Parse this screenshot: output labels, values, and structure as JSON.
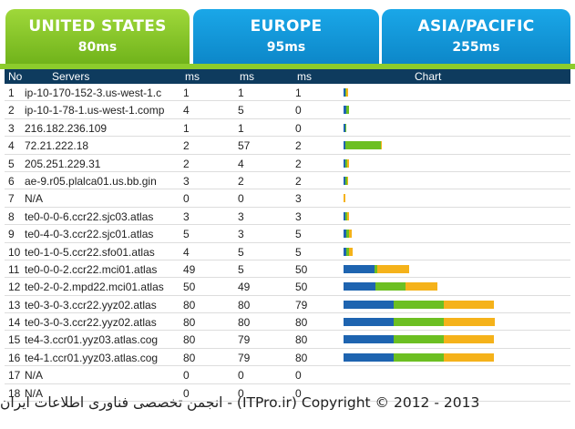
{
  "tabs": [
    {
      "name": "UNITED STATES",
      "ms": "80ms"
    },
    {
      "name": "EUROPE",
      "ms": "95ms"
    },
    {
      "name": "ASIA/PACIFIC",
      "ms": "255ms"
    }
  ],
  "table": {
    "headers": [
      "No",
      "Servers",
      "ms",
      "ms",
      "ms",
      "Chart"
    ],
    "rows": [
      {
        "no": "1",
        "server": "ip-10-170-152-3.us-west-1.c",
        "ms1": "1",
        "ms2": "1",
        "ms3": "1"
      },
      {
        "no": "2",
        "server": "ip-10-1-78-1.us-west-1.comp",
        "ms1": "4",
        "ms2": "5",
        "ms3": "0"
      },
      {
        "no": "3",
        "server": "216.182.236.109",
        "ms1": "1",
        "ms2": "1",
        "ms3": "0"
      },
      {
        "no": "4",
        "server": "72.21.222.18",
        "ms1": "2",
        "ms2": "57",
        "ms3": "2"
      },
      {
        "no": "5",
        "server": "205.251.229.31",
        "ms1": "2",
        "ms2": "4",
        "ms3": "2"
      },
      {
        "no": "6",
        "server": "ae-9.r05.plalca01.us.bb.gin",
        "ms1": "3",
        "ms2": "2",
        "ms3": "2"
      },
      {
        "no": "7",
        "server": "N/A",
        "ms1": "0",
        "ms2": "0",
        "ms3": "3"
      },
      {
        "no": "8",
        "server": "te0-0-0-6.ccr22.sjc03.atlas",
        "ms1": "3",
        "ms2": "3",
        "ms3": "3"
      },
      {
        "no": "9",
        "server": "te0-4-0-3.ccr22.sjc01.atlas",
        "ms1": "5",
        "ms2": "3",
        "ms3": "5"
      },
      {
        "no": "10",
        "server": "te0-1-0-5.ccr22.sfo01.atlas",
        "ms1": "4",
        "ms2": "5",
        "ms3": "5"
      },
      {
        "no": "11",
        "server": "te0-0-0-2.ccr22.mci01.atlas",
        "ms1": "49",
        "ms2": "5",
        "ms3": "50"
      },
      {
        "no": "12",
        "server": "te0-2-0-2.mpd22.mci01.atlas",
        "ms1": "50",
        "ms2": "49",
        "ms3": "50"
      },
      {
        "no": "13",
        "server": "te0-3-0-3.ccr22.yyz02.atlas",
        "ms1": "80",
        "ms2": "80",
        "ms3": "79"
      },
      {
        "no": "14",
        "server": "te0-3-0-3.ccr22.yyz02.atlas",
        "ms1": "80",
        "ms2": "80",
        "ms3": "80"
      },
      {
        "no": "15",
        "server": "te4-3.ccr01.yyz03.atlas.cog",
        "ms1": "80",
        "ms2": "79",
        "ms3": "80"
      },
      {
        "no": "16",
        "server": "te4-1.ccr01.yyz03.atlas.cog",
        "ms1": "80",
        "ms2": "79",
        "ms3": "80"
      },
      {
        "no": "17",
        "server": "N/A",
        "ms1": "0",
        "ms2": "0",
        "ms3": "0"
      },
      {
        "no": "18",
        "server": "N/A",
        "ms1": "0",
        "ms2": "0",
        "ms3": "0"
      }
    ]
  },
  "colors": {
    "series1": "#1e64b0",
    "series2": "#6cbf22",
    "series3": "#f5b21a",
    "header_bg": "#0e3b5e",
    "tab_green": "#7dc224",
    "tab_blue": "#1196d8"
  },
  "watermark": "انجمن تخصصی فناوری اطلاعات ایران - (ITPro.ir) Copyright © 2012 - 2013"
}
